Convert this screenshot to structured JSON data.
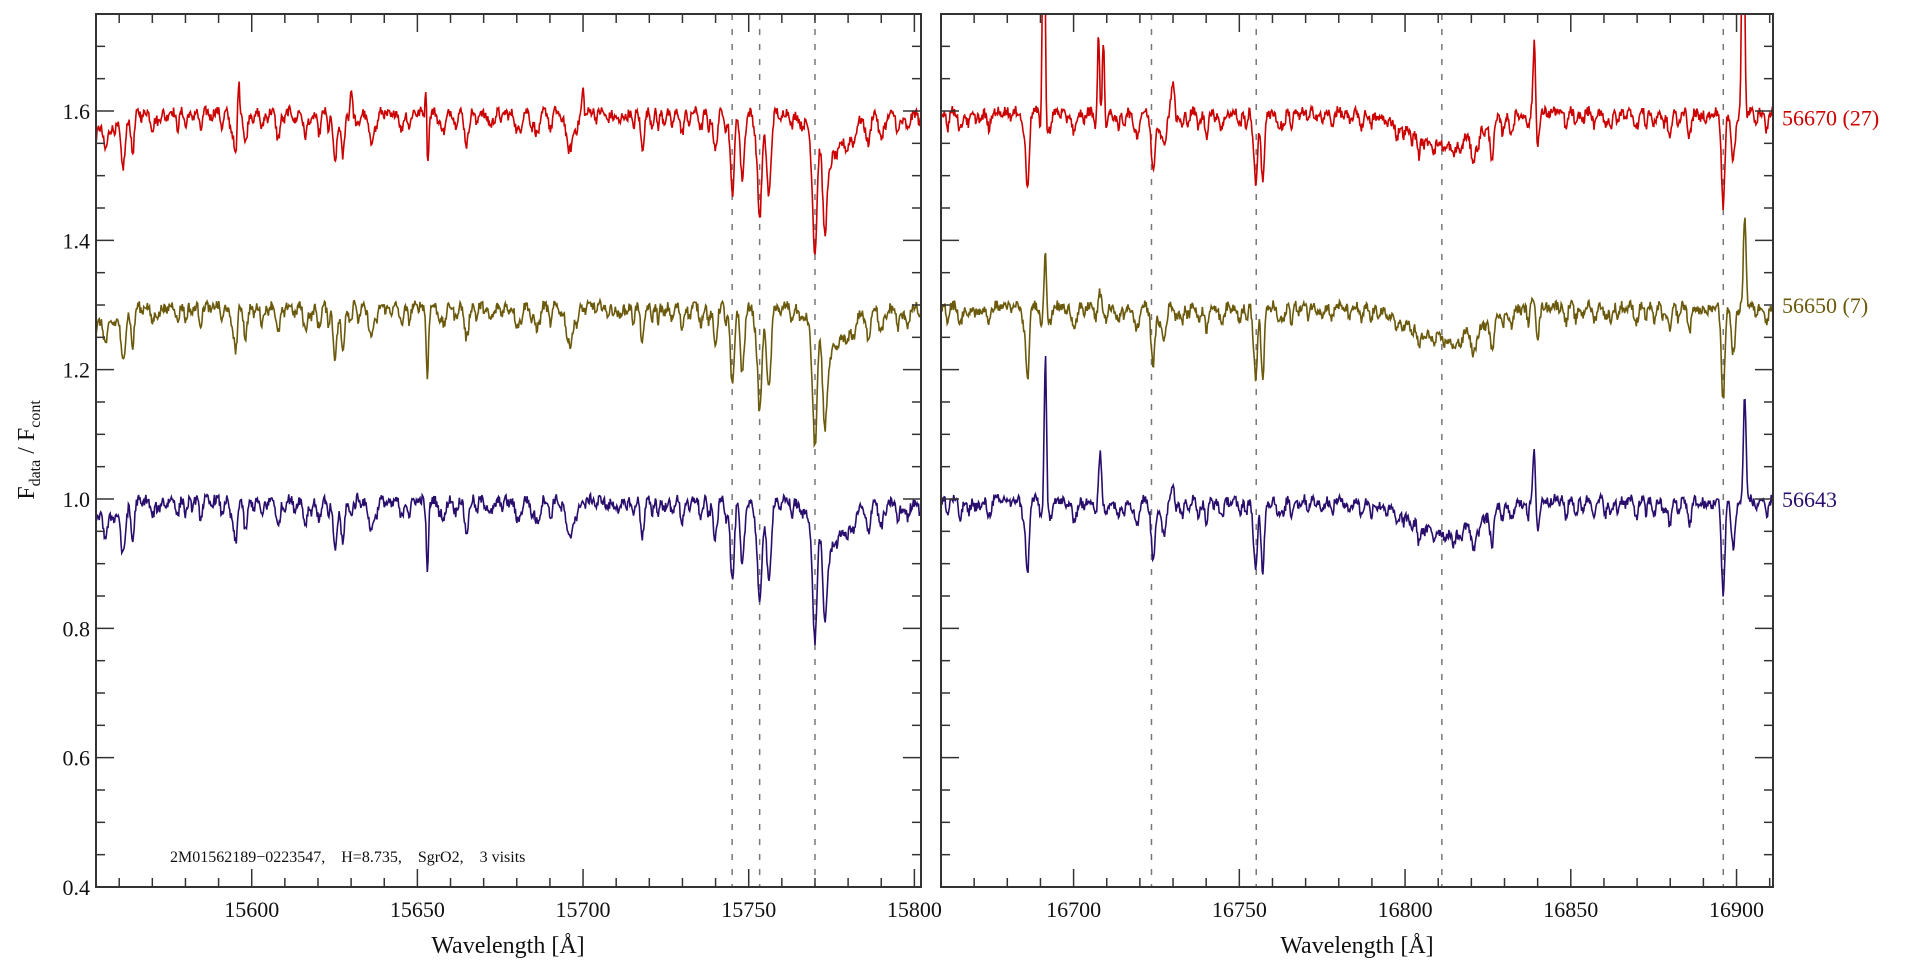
{
  "chart_data": {
    "type": "line",
    "title": "",
    "annotation": "2M01562189−0223547,    H=8.735,    SgrO2,    3 visits",
    "ylabel": {
      "main": "F",
      "sub1": "data",
      "sep": " / F",
      "sub2": "cont"
    },
    "xlabel": "Wavelength [Å]",
    "ylim": [
      0.4,
      1.75
    ],
    "y_ticks": [
      "0.4",
      "0.6",
      "0.8",
      "1.0",
      "1.2",
      "1.4",
      "1.6"
    ],
    "panels": [
      {
        "name": "left",
        "xlim": [
          15553,
          15802
        ],
        "x_ticks": [
          "15600",
          "15650",
          "15700",
          "15750",
          "15800"
        ],
        "marker_lines": [
          15745.0,
          15753.3,
          15770.0
        ],
        "absorption_features": [
          [
            15556,
            0.03,
            3
          ],
          [
            15561,
            0.07,
            0.6
          ],
          [
            15564,
            0.04,
            0.6
          ],
          [
            15595,
            0.06,
            0.5
          ],
          [
            15598,
            0.04,
            0.5
          ],
          [
            15608,
            0.04,
            0.6
          ],
          [
            15616,
            0.02,
            0.6
          ],
          [
            15620,
            0.02,
            0.5
          ],
          [
            15625,
            0.07,
            0.5
          ],
          [
            15627.5,
            0.05,
            0.5
          ],
          [
            15636,
            0.05,
            0.6
          ],
          [
            15645,
            0.02,
            0.5
          ],
          [
            15653,
            0.09,
            0.3
          ],
          [
            15658,
            0.03,
            0.5
          ],
          [
            15665,
            0.04,
            0.6
          ],
          [
            15672,
            0.02,
            0.5
          ],
          [
            15680,
            0.03,
            0.6
          ],
          [
            15686,
            0.035,
            0.6
          ],
          [
            15690,
            0.02,
            0.5
          ],
          [
            15696,
            0.06,
            1.0
          ],
          [
            15711,
            0.02,
            0.5
          ],
          [
            15718,
            0.035,
            0.6
          ],
          [
            15730,
            0.025,
            0.5
          ],
          [
            15740,
            0.05,
            0.6
          ],
          [
            15745,
            0.12,
            0.6
          ],
          [
            15748,
            0.1,
            0.6
          ],
          [
            15753.3,
            0.16,
            0.6
          ],
          [
            15756,
            0.12,
            0.6
          ],
          [
            15770,
            0.18,
            0.6
          ],
          [
            15773,
            0.13,
            0.6
          ],
          [
            15775,
            0.06,
            5
          ],
          [
            15786,
            0.04,
            0.6
          ],
          [
            15790,
            0.04,
            0.5
          ],
          [
            15795,
            0.035,
            0.5
          ],
          [
            15798,
            0.03,
            0.5
          ]
        ]
      },
      {
        "name": "right",
        "xlim": [
          16660,
          16911
        ],
        "x_ticks": [
          "16700",
          "16750",
          "16800",
          "16850",
          "16900"
        ],
        "marker_lines": [
          16723.5,
          16755.1,
          16811.1,
          16896.0
        ],
        "absorption_features": [
          [
            16666,
            0.02,
            0.6
          ],
          [
            16686,
            0.11,
            0.5
          ],
          [
            16692,
            0.03,
            0.6
          ],
          [
            16700,
            0.03,
            0.6
          ],
          [
            16719,
            0.03,
            0.6
          ],
          [
            16724,
            0.09,
            0.6
          ],
          [
            16727,
            0.04,
            0.6
          ],
          [
            16740,
            0.02,
            0.6
          ],
          [
            16745,
            0.02,
            0.6
          ],
          [
            16755,
            0.11,
            0.5
          ],
          [
            16757,
            0.1,
            0.5
          ],
          [
            16762,
            0.02,
            0.6
          ],
          [
            16811,
            0.05,
            10
          ],
          [
            16821,
            0.03,
            0.6
          ],
          [
            16826,
            0.03,
            0.6
          ],
          [
            16832,
            0.025,
            0.6
          ],
          [
            16840,
            0.02,
            0.5
          ],
          [
            16862,
            0.015,
            0.6
          ],
          [
            16880,
            0.02,
            0.6
          ],
          [
            16886,
            0.02,
            0.6
          ],
          [
            16896,
            0.13,
            0.5
          ],
          [
            16899,
            0.05,
            0.6
          ]
        ]
      }
    ],
    "series": [
      {
        "name": "56670 (27)",
        "offset": 0.6,
        "color": "#cc0000",
        "label_y": 1.59,
        "emission": [
          [
            15596,
            0.06,
            0.3
          ],
          [
            15630,
            0.06,
            0.35
          ],
          [
            15652.7,
            0.1,
            0.25
          ],
          [
            15700,
            0.04,
            0.3
          ],
          [
            16691,
            0.5,
            0.35
          ],
          [
            16707.5,
            0.12,
            0.3
          ],
          [
            16709,
            0.12,
            0.3
          ],
          [
            16730,
            0.05,
            0.5
          ],
          [
            16839,
            0.12,
            0.35
          ],
          [
            16902,
            0.4,
            0.4
          ]
        ]
      },
      {
        "name": "56650 (7)",
        "offset": 0.3,
        "color": "#6b5a0c",
        "label_y": 1.3,
        "emission": [
          [
            15631,
            0.02,
            0.4
          ],
          [
            16691.5,
            0.11,
            0.35
          ],
          [
            16708,
            0.02,
            0.4
          ],
          [
            16839,
            0.02,
            0.4
          ],
          [
            16902.5,
            0.15,
            0.4
          ]
        ]
      },
      {
        "name": "56643",
        "offset": 0.0,
        "color": "#2a0e6e",
        "label_y": 1.0,
        "emission": [
          [
            15632,
            0.03,
            0.4
          ],
          [
            16691.5,
            0.24,
            0.35
          ],
          [
            16708,
            0.07,
            0.4
          ],
          [
            16730,
            0.03,
            0.5
          ],
          [
            16839,
            0.08,
            0.4
          ],
          [
            16902.5,
            0.17,
            0.4
          ]
        ]
      }
    ],
    "noise_amplitude": 0.008,
    "grid": false
  }
}
